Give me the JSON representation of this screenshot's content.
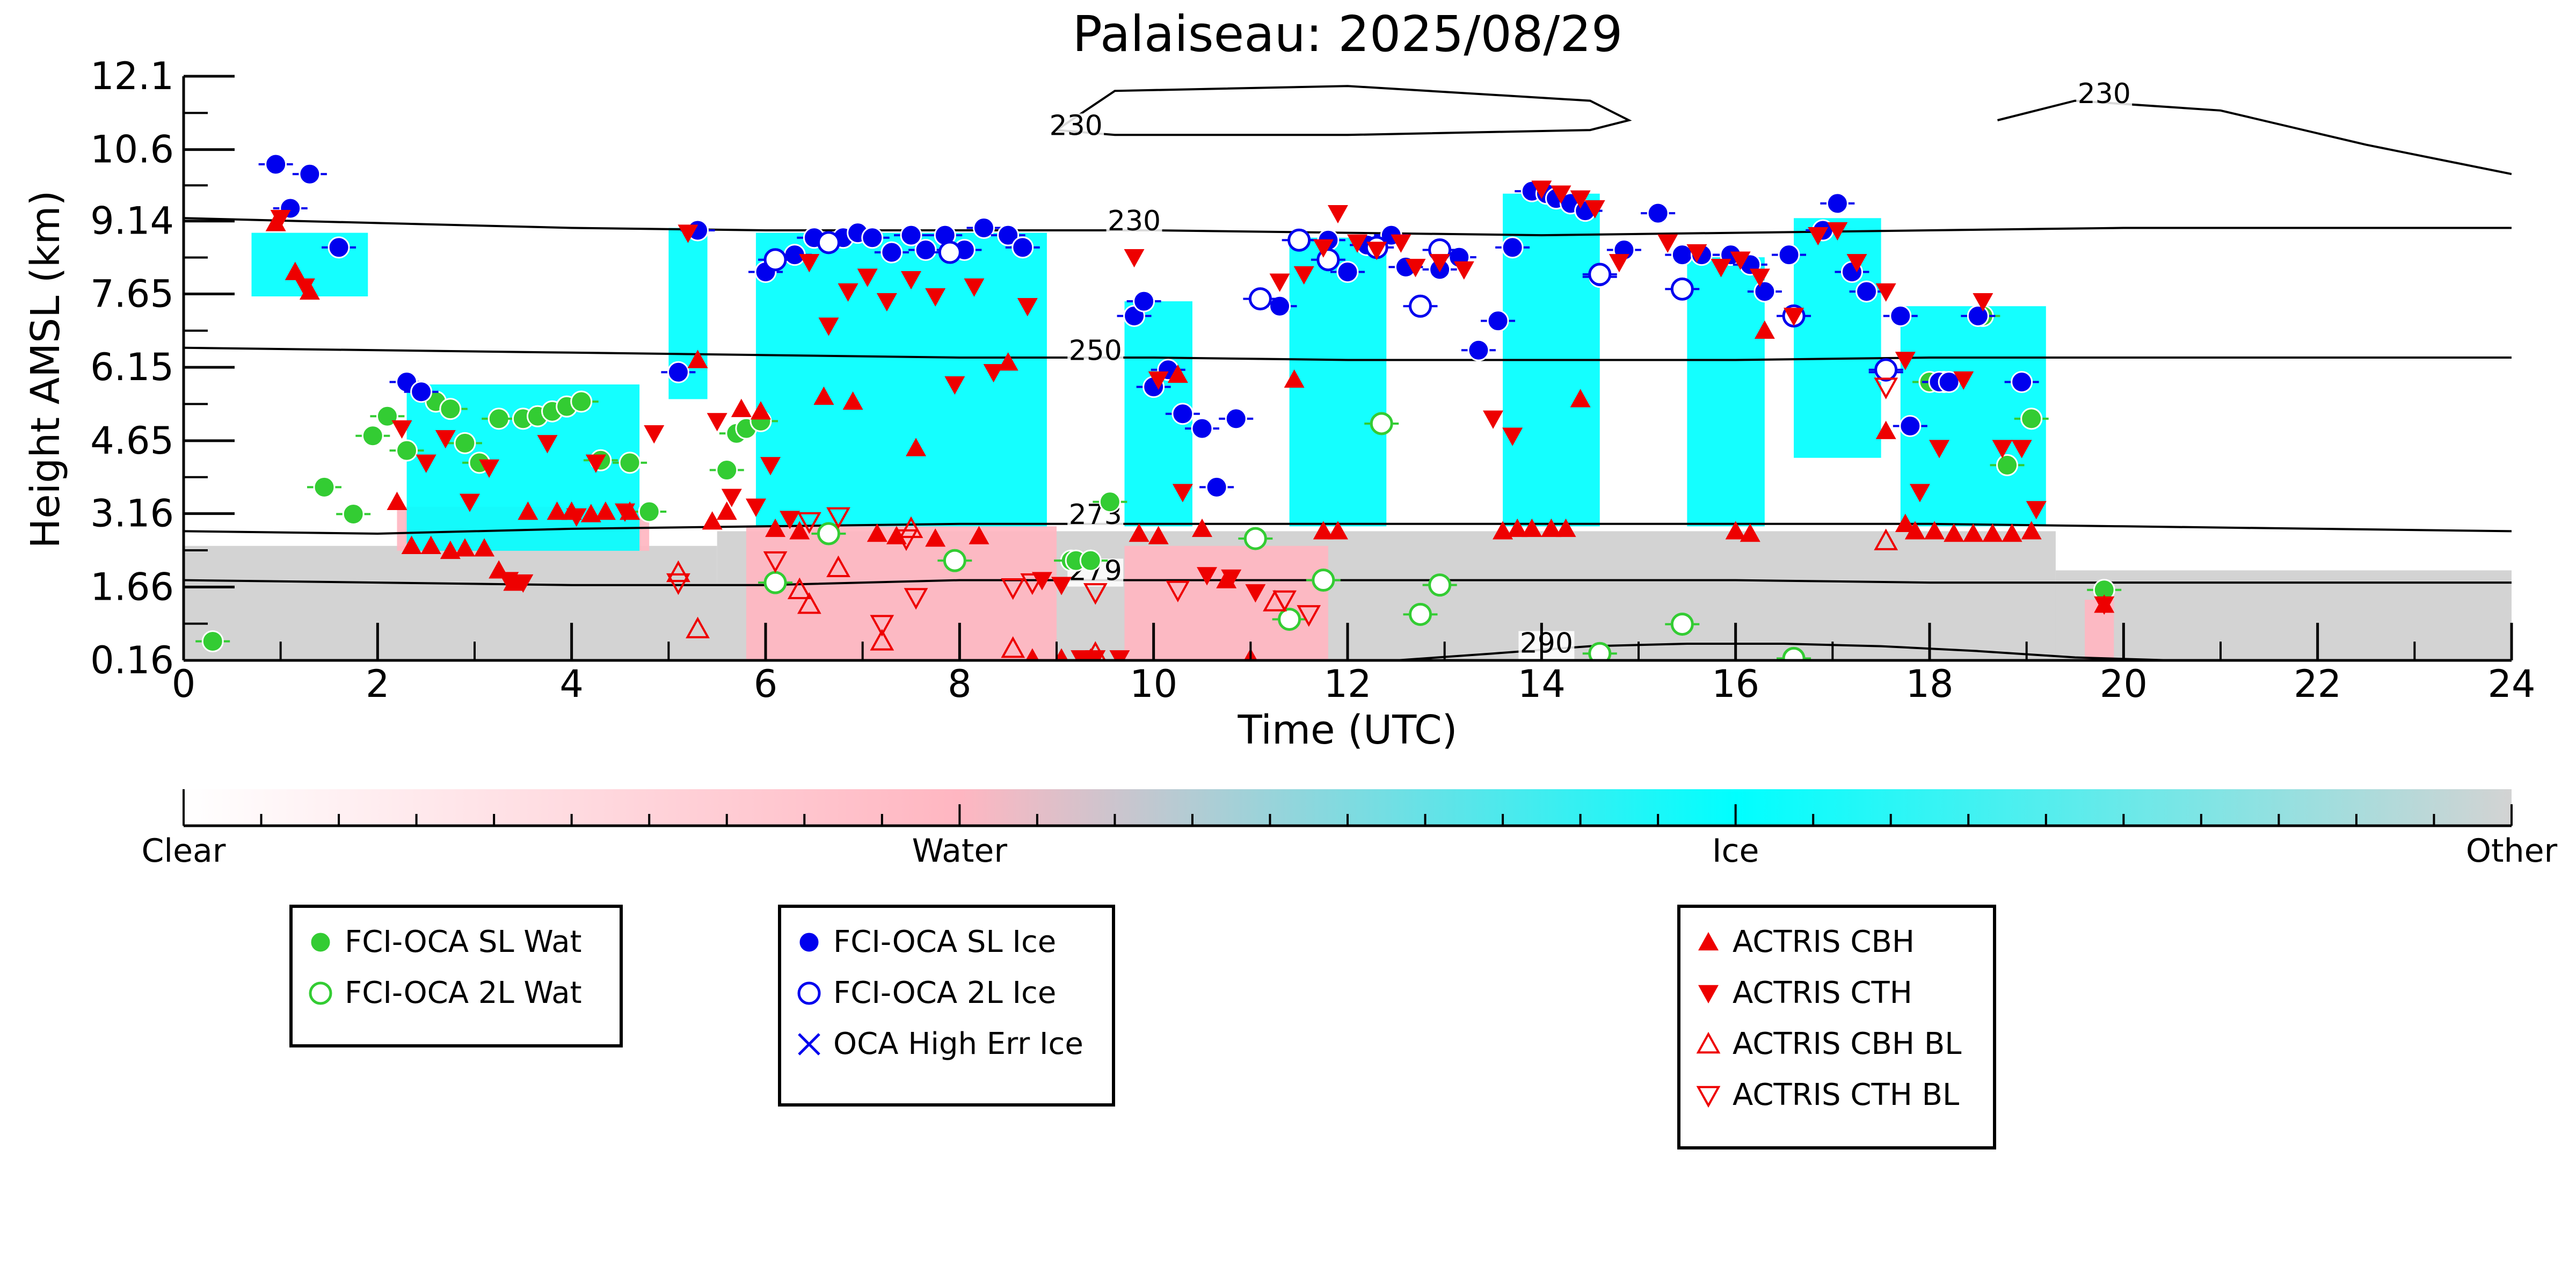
{
  "chart_data": {
    "type": "scatter",
    "title": "Palaiseau: 2025/08/29",
    "xlabel": "Time (UTC)",
    "ylabel": "Height AMSL (km)",
    "xlim": [
      0,
      24
    ],
    "ylim": [
      0.16,
      12.1
    ],
    "xticks": [
      0,
      2,
      4,
      6,
      8,
      10,
      12,
      14,
      16,
      18,
      20,
      22,
      24
    ],
    "yticks": [
      0.16,
      1.66,
      3.16,
      4.65,
      6.15,
      7.65,
      9.14,
      10.6,
      12.1
    ],
    "ytick_labels": [
      "0.16",
      "1.66",
      "3.16",
      "4.65",
      "6.15",
      "7.65",
      "9.14",
      "10.6",
      "12.1"
    ],
    "grid": false,
    "colorbar": {
      "labels": [
        "Clear",
        "Water",
        "Ice",
        "Other"
      ],
      "colors": [
        "#ffffff",
        "#ffb6c1",
        "#00ffff",
        "#d3d3d3"
      ]
    },
    "background_layers": [
      {
        "name": "Other",
        "color": "#d3d3d3",
        "x": [
          0,
          24
        ],
        "top_km": 1.75
      },
      {
        "name": "Other",
        "color": "#d3d3d3",
        "x": [
          0,
          5.5
        ],
        "top_km": 2.5
      },
      {
        "name": "Other",
        "color": "#d3d3d3",
        "x": [
          5.5,
          19.3
        ],
        "top_km": 2.8
      },
      {
        "name": "Other",
        "color": "#d3d3d3",
        "x": [
          19.3,
          24
        ],
        "top_km": 2.0
      },
      {
        "name": "Water",
        "color": "#ffb6c1",
        "x": [
          5.8,
          9.0
        ],
        "y": [
          0.16,
          2.9
        ]
      },
      {
        "name": "Water",
        "color": "#ffb6c1",
        "x": [
          9.7,
          11.8
        ],
        "y": [
          0.16,
          2.5
        ]
      },
      {
        "name": "Water",
        "color": "#ffb6c1",
        "x": [
          2.2,
          4.8
        ],
        "y": [
          2.4,
          3.3
        ]
      },
      {
        "name": "Water",
        "color": "#ffb6c1",
        "x": [
          19.6,
          19.9
        ],
        "y": [
          0.16,
          1.4
        ]
      },
      {
        "name": "Ice",
        "color": "#00ffff",
        "x": [
          0.7,
          1.9
        ],
        "y": [
          7.6,
          8.9
        ]
      },
      {
        "name": "Ice",
        "color": "#00ffff",
        "x": [
          2.3,
          4.7
        ],
        "y": [
          2.4,
          5.8
        ]
      },
      {
        "name": "Ice",
        "color": "#00ffff",
        "x": [
          5.0,
          5.4
        ],
        "y": [
          5.5,
          9.0
        ]
      },
      {
        "name": "Ice",
        "color": "#00ffff",
        "x": [
          5.9,
          8.9
        ],
        "y": [
          2.9,
          8.9
        ]
      },
      {
        "name": "Ice",
        "color": "#00ffff",
        "x": [
          9.7,
          10.4
        ],
        "y": [
          2.9,
          7.5
        ]
      },
      {
        "name": "Ice",
        "color": "#00ffff",
        "x": [
          11.4,
          12.4
        ],
        "y": [
          2.9,
          8.8
        ]
      },
      {
        "name": "Ice",
        "color": "#00ffff",
        "x": [
          13.6,
          14.6
        ],
        "y": [
          2.9,
          9.7
        ]
      },
      {
        "name": "Ice",
        "color": "#00ffff",
        "x": [
          15.5,
          16.3
        ],
        "y": [
          2.9,
          8.4
        ]
      },
      {
        "name": "Ice",
        "color": "#00ffff",
        "x": [
          16.6,
          17.5
        ],
        "y": [
          4.3,
          9.2
        ]
      },
      {
        "name": "Ice",
        "color": "#00ffff",
        "x": [
          17.7,
          19.2
        ],
        "y": [
          2.9,
          7.4
        ]
      }
    ],
    "contours": [
      {
        "label": "230",
        "label_x": 9.8,
        "label_y": 8.95,
        "x": [
          0,
          2,
          4,
          6,
          8,
          10,
          12,
          14,
          16,
          18,
          20,
          22,
          24
        ],
        "y": [
          9.2,
          9.1,
          9.0,
          8.95,
          8.95,
          8.95,
          8.9,
          8.85,
          8.9,
          8.95,
          9.0,
          9.0,
          9.0
        ]
      },
      {
        "label": "230",
        "label_x": 9.2,
        "label_y": 10.9,
        "x": [
          9.0,
          9.6,
          12.0,
          14.5,
          14.9,
          14.5,
          12.0,
          9.6,
          9.0
        ],
        "y": [
          11.0,
          11.8,
          11.9,
          11.6,
          11.2,
          11.0,
          10.9,
          10.9,
          11.0
        ]
      },
      {
        "label": "230",
        "label_x": 19.8,
        "label_y": 11.55,
        "x": [
          18.7,
          19.5,
          21.0,
          22.5,
          24.0
        ],
        "y": [
          11.2,
          11.6,
          11.4,
          10.7,
          10.1
        ]
      },
      {
        "label": "250",
        "label_x": 9.4,
        "label_y": 6.3,
        "x": [
          0,
          2,
          4,
          6,
          8,
          10,
          12,
          14,
          16,
          18,
          20,
          22,
          24
        ],
        "y": [
          6.55,
          6.5,
          6.45,
          6.4,
          6.35,
          6.35,
          6.3,
          6.3,
          6.3,
          6.35,
          6.35,
          6.35,
          6.35
        ]
      },
      {
        "label": "273",
        "label_x": 9.4,
        "label_y": 2.95,
        "x": [
          0,
          2,
          4,
          6,
          8,
          10,
          12,
          14,
          16,
          18,
          20,
          22,
          24
        ],
        "y": [
          2.8,
          2.75,
          2.85,
          2.9,
          2.95,
          2.95,
          2.95,
          2.95,
          2.95,
          2.95,
          2.9,
          2.85,
          2.8
        ]
      },
      {
        "label": "279",
        "label_x": 9.4,
        "label_y": 1.8,
        "x": [
          0,
          2,
          4,
          6,
          8,
          10,
          12,
          14,
          16,
          18,
          20,
          22,
          24
        ],
        "y": [
          1.8,
          1.75,
          1.7,
          1.7,
          1.8,
          1.8,
          1.8,
          1.8,
          1.8,
          1.75,
          1.75,
          1.75,
          1.75
        ]
      },
      {
        "label": "290",
        "label_x": 14.05,
        "label_y": 0.32,
        "x": [
          12.5,
          13.5,
          14.5,
          15.5,
          16.5,
          17.5,
          18.5,
          19.5,
          20.5
        ],
        "y": [
          0.16,
          0.3,
          0.45,
          0.5,
          0.5,
          0.45,
          0.35,
          0.22,
          0.16
        ]
      }
    ],
    "series": [
      {
        "name": "FCI-OCA SL Wat",
        "marker": "filled-circle",
        "color": "#33cc33",
        "x": [
          0.3,
          1.45,
          1.75,
          1.95,
          2.1,
          2.3,
          2.6,
          2.75,
          2.9,
          3.05,
          3.25,
          3.5,
          3.65,
          3.8,
          3.95,
          4.1,
          4.3,
          4.6,
          4.8,
          5.6,
          5.7,
          5.8,
          5.95,
          9.15,
          9.2,
          9.35,
          9.55,
          18.0,
          18.15,
          18.55,
          18.8,
          19.05,
          19.8
        ],
        "y": [
          0.55,
          3.7,
          3.15,
          4.75,
          5.15,
          4.45,
          5.45,
          5.3,
          4.6,
          4.2,
          5.1,
          5.1,
          5.15,
          5.25,
          5.35,
          5.45,
          4.25,
          4.2,
          3.2,
          4.05,
          4.8,
          4.9,
          5.05,
          2.2,
          2.2,
          2.2,
          3.4,
          5.85,
          5.85,
          7.2,
          4.15,
          5.1,
          1.6
        ]
      },
      {
        "name": "FCI-OCA 2L Wat",
        "marker": "open-circle",
        "color": "#33cc33",
        "x": [
          6.1,
          6.65,
          7.95,
          11.05,
          11.4,
          11.75,
          12.35,
          12.75,
          12.95,
          14.6,
          15.45,
          16.6
        ],
        "y": [
          1.75,
          2.75,
          2.2,
          2.65,
          1.0,
          1.8,
          5.0,
          1.1,
          1.7,
          0.3,
          0.9,
          0.2
        ]
      },
      {
        "name": "FCI-OCA SL Ice",
        "marker": "filled-circle",
        "color": "#0000ee",
        "x": [
          0.95,
          1.1,
          1.3,
          1.6,
          2.3,
          2.45,
          5.1,
          5.3,
          6.0,
          6.3,
          6.5,
          6.8,
          6.95,
          7.1,
          7.3,
          7.5,
          7.65,
          7.85,
          8.05,
          8.25,
          8.5,
          8.65,
          9.8,
          9.9,
          10.0,
          10.15,
          10.3,
          10.5,
          10.65,
          10.85,
          11.3,
          11.8,
          12.0,
          12.2,
          12.45,
          12.6,
          12.95,
          13.15,
          13.35,
          13.55,
          13.7,
          13.9,
          14.05,
          14.15,
          14.3,
          14.45,
          14.6,
          14.85,
          15.2,
          15.45,
          15.65,
          15.95,
          16.15,
          16.3,
          16.55,
          16.9,
          17.05,
          17.2,
          17.35,
          17.55,
          17.7,
          17.8,
          18.1,
          18.2,
          18.5,
          18.95
        ],
        "y": [
          10.3,
          9.4,
          10.1,
          8.6,
          5.85,
          5.65,
          6.05,
          8.95,
          8.1,
          8.45,
          8.8,
          8.8,
          8.9,
          8.8,
          8.5,
          8.85,
          8.55,
          8.85,
          8.55,
          9.0,
          8.85,
          8.6,
          7.2,
          7.5,
          5.75,
          6.1,
          5.2,
          4.9,
          3.7,
          5.1,
          7.4,
          8.75,
          8.1,
          8.65,
          8.85,
          8.2,
          8.15,
          8.4,
          6.5,
          7.1,
          8.6,
          9.75,
          9.7,
          9.6,
          9.5,
          9.35,
          8.0,
          8.55,
          9.3,
          8.45,
          8.45,
          8.45,
          8.25,
          7.7,
          8.45,
          8.95,
          9.5,
          8.1,
          7.7,
          6.05,
          7.2,
          4.95,
          5.85,
          5.85,
          7.2,
          5.85
        ]
      },
      {
        "name": "FCI-OCA 2L Ice",
        "marker": "open-circle",
        "color": "#0000ee",
        "x": [
          6.1,
          6.65,
          7.9,
          11.1,
          11.5,
          11.8,
          12.3,
          12.75,
          12.95,
          14.6,
          15.45,
          16.6,
          17.55
        ],
        "y": [
          8.35,
          8.7,
          8.5,
          7.55,
          8.75,
          8.35,
          8.6,
          7.4,
          8.55,
          8.05,
          7.75,
          7.2,
          6.1
        ]
      },
      {
        "name": "OCA High Err Ice",
        "marker": "x",
        "color": "#0000ee",
        "x": [],
        "y": []
      },
      {
        "name": "ACTRIS CBH",
        "marker": "filled-triangle-up",
        "color": "#ee0000",
        "x": [
          0.95,
          1.15,
          1.3,
          2.2,
          2.35,
          2.55,
          2.75,
          2.9,
          3.1,
          3.25,
          3.4,
          3.55,
          3.85,
          4.0,
          4.2,
          4.35,
          4.6,
          5.3,
          5.45,
          5.6,
          5.75,
          5.95,
          6.1,
          6.35,
          6.6,
          6.9,
          7.15,
          7.35,
          7.55,
          7.75,
          8.2,
          8.5,
          8.75,
          9.05,
          9.35,
          9.85,
          10.05,
          10.25,
          10.5,
          10.75,
          11.0,
          11.45,
          11.75,
          11.9,
          13.6,
          13.75,
          13.9,
          14.1,
          14.25,
          14.4,
          16.0,
          16.15,
          16.3,
          17.55,
          17.75,
          17.85,
          18.05,
          18.25,
          18.45,
          18.65,
          18.85,
          19.05,
          19.8
        ],
        "y": [
          9.1,
          8.1,
          7.7,
          3.4,
          2.5,
          2.5,
          2.4,
          2.45,
          2.45,
          2.0,
          1.75,
          3.2,
          3.2,
          3.2,
          3.15,
          3.2,
          3.2,
          6.3,
          3.0,
          3.2,
          5.3,
          5.25,
          2.85,
          2.8,
          5.55,
          5.45,
          2.75,
          2.7,
          4.5,
          2.65,
          2.7,
          6.25,
          0.2,
          0.2,
          0.2,
          2.75,
          2.7,
          6.0,
          2.85,
          1.8,
          0.2,
          5.9,
          2.8,
          2.8,
          2.8,
          2.85,
          2.85,
          2.85,
          2.85,
          5.5,
          2.8,
          2.75,
          6.9,
          4.85,
          2.95,
          2.8,
          2.8,
          2.75,
          2.75,
          2.75,
          2.75,
          2.8,
          1.3
        ]
      },
      {
        "name": "ACTRIS CTH",
        "marker": "filled-triangle-down",
        "color": "#ee0000",
        "x": [
          1.0,
          1.25,
          2.25,
          2.5,
          2.7,
          2.95,
          3.15,
          3.35,
          3.5,
          3.75,
          4.05,
          4.25,
          4.55,
          4.85,
          5.2,
          5.5,
          5.65,
          5.9,
          6.05,
          6.25,
          6.45,
          6.65,
          6.85,
          7.05,
          7.25,
          7.5,
          7.75,
          7.95,
          8.15,
          8.35,
          8.7,
          8.85,
          9.05,
          9.25,
          9.4,
          9.65,
          9.8,
          10.05,
          10.3,
          10.55,
          10.8,
          11.05,
          11.3,
          11.55,
          11.75,
          11.9,
          12.1,
          12.3,
          12.55,
          12.7,
          12.95,
          13.2,
          13.5,
          13.7,
          14.0,
          14.2,
          14.4,
          14.55,
          14.8,
          15.3,
          15.6,
          15.85,
          16.05,
          16.25,
          16.6,
          16.85,
          17.05,
          17.25,
          17.55,
          17.75,
          17.9,
          18.1,
          18.35,
          18.55,
          18.75,
          18.95,
          19.1,
          19.8
        ],
        "y": [
          9.2,
          7.8,
          4.9,
          4.2,
          4.7,
          3.4,
          4.1,
          1.8,
          1.75,
          4.6,
          3.1,
          4.2,
          3.2,
          4.8,
          8.9,
          5.05,
          3.5,
          3.3,
          4.15,
          3.05,
          8.3,
          7.0,
          7.7,
          8.0,
          7.5,
          7.95,
          7.6,
          5.8,
          7.8,
          6.05,
          7.4,
          1.8,
          1.7,
          0.2,
          0.2,
          0.2,
          8.4,
          5.9,
          3.6,
          1.9,
          1.85,
          1.55,
          7.9,
          8.05,
          8.6,
          9.3,
          8.7,
          8.55,
          8.7,
          8.2,
          8.3,
          8.15,
          5.1,
          4.75,
          9.8,
          9.7,
          9.6,
          9.4,
          8.3,
          8.7,
          8.5,
          8.2,
          8.35,
          8.0,
          7.2,
          8.85,
          8.95,
          8.3,
          7.7,
          6.3,
          3.6,
          4.5,
          5.9,
          7.5,
          4.5,
          4.5,
          3.25,
          1.3
        ]
      },
      {
        "name": "ACTRIS CBH BL",
        "marker": "open-triangle-up",
        "color": "#ee0000",
        "x": [
          5.1,
          5.3,
          6.35,
          6.45,
          6.75,
          7.2,
          7.5,
          8.55,
          9.4,
          11.25,
          17.55
        ],
        "y": [
          1.95,
          0.8,
          1.6,
          1.3,
          2.05,
          0.55,
          2.85,
          0.4,
          0.3,
          1.35,
          2.6
        ]
      },
      {
        "name": "ACTRIS CTH BL",
        "marker": "open-triangle-down",
        "color": "#ee0000",
        "x": [
          5.1,
          6.1,
          6.45,
          6.75,
          7.2,
          7.45,
          7.55,
          8.55,
          8.75,
          9.4,
          10.25,
          11.35,
          11.6,
          17.55
        ],
        "y": [
          1.75,
          2.2,
          3.0,
          3.1,
          0.9,
          2.65,
          1.45,
          1.65,
          1.75,
          1.55,
          1.6,
          1.4,
          1.1,
          5.75
        ]
      }
    ],
    "legends": [
      [
        "FCI-OCA SL Wat",
        "FCI-OCA 2L Wat"
      ],
      [
        "FCI-OCA SL Ice",
        "FCI-OCA 2L Ice",
        "OCA High Err Ice"
      ],
      [
        "ACTRIS CBH",
        "ACTRIS CTH",
        "ACTRIS CBH BL",
        "ACTRIS CTH BL"
      ]
    ]
  }
}
